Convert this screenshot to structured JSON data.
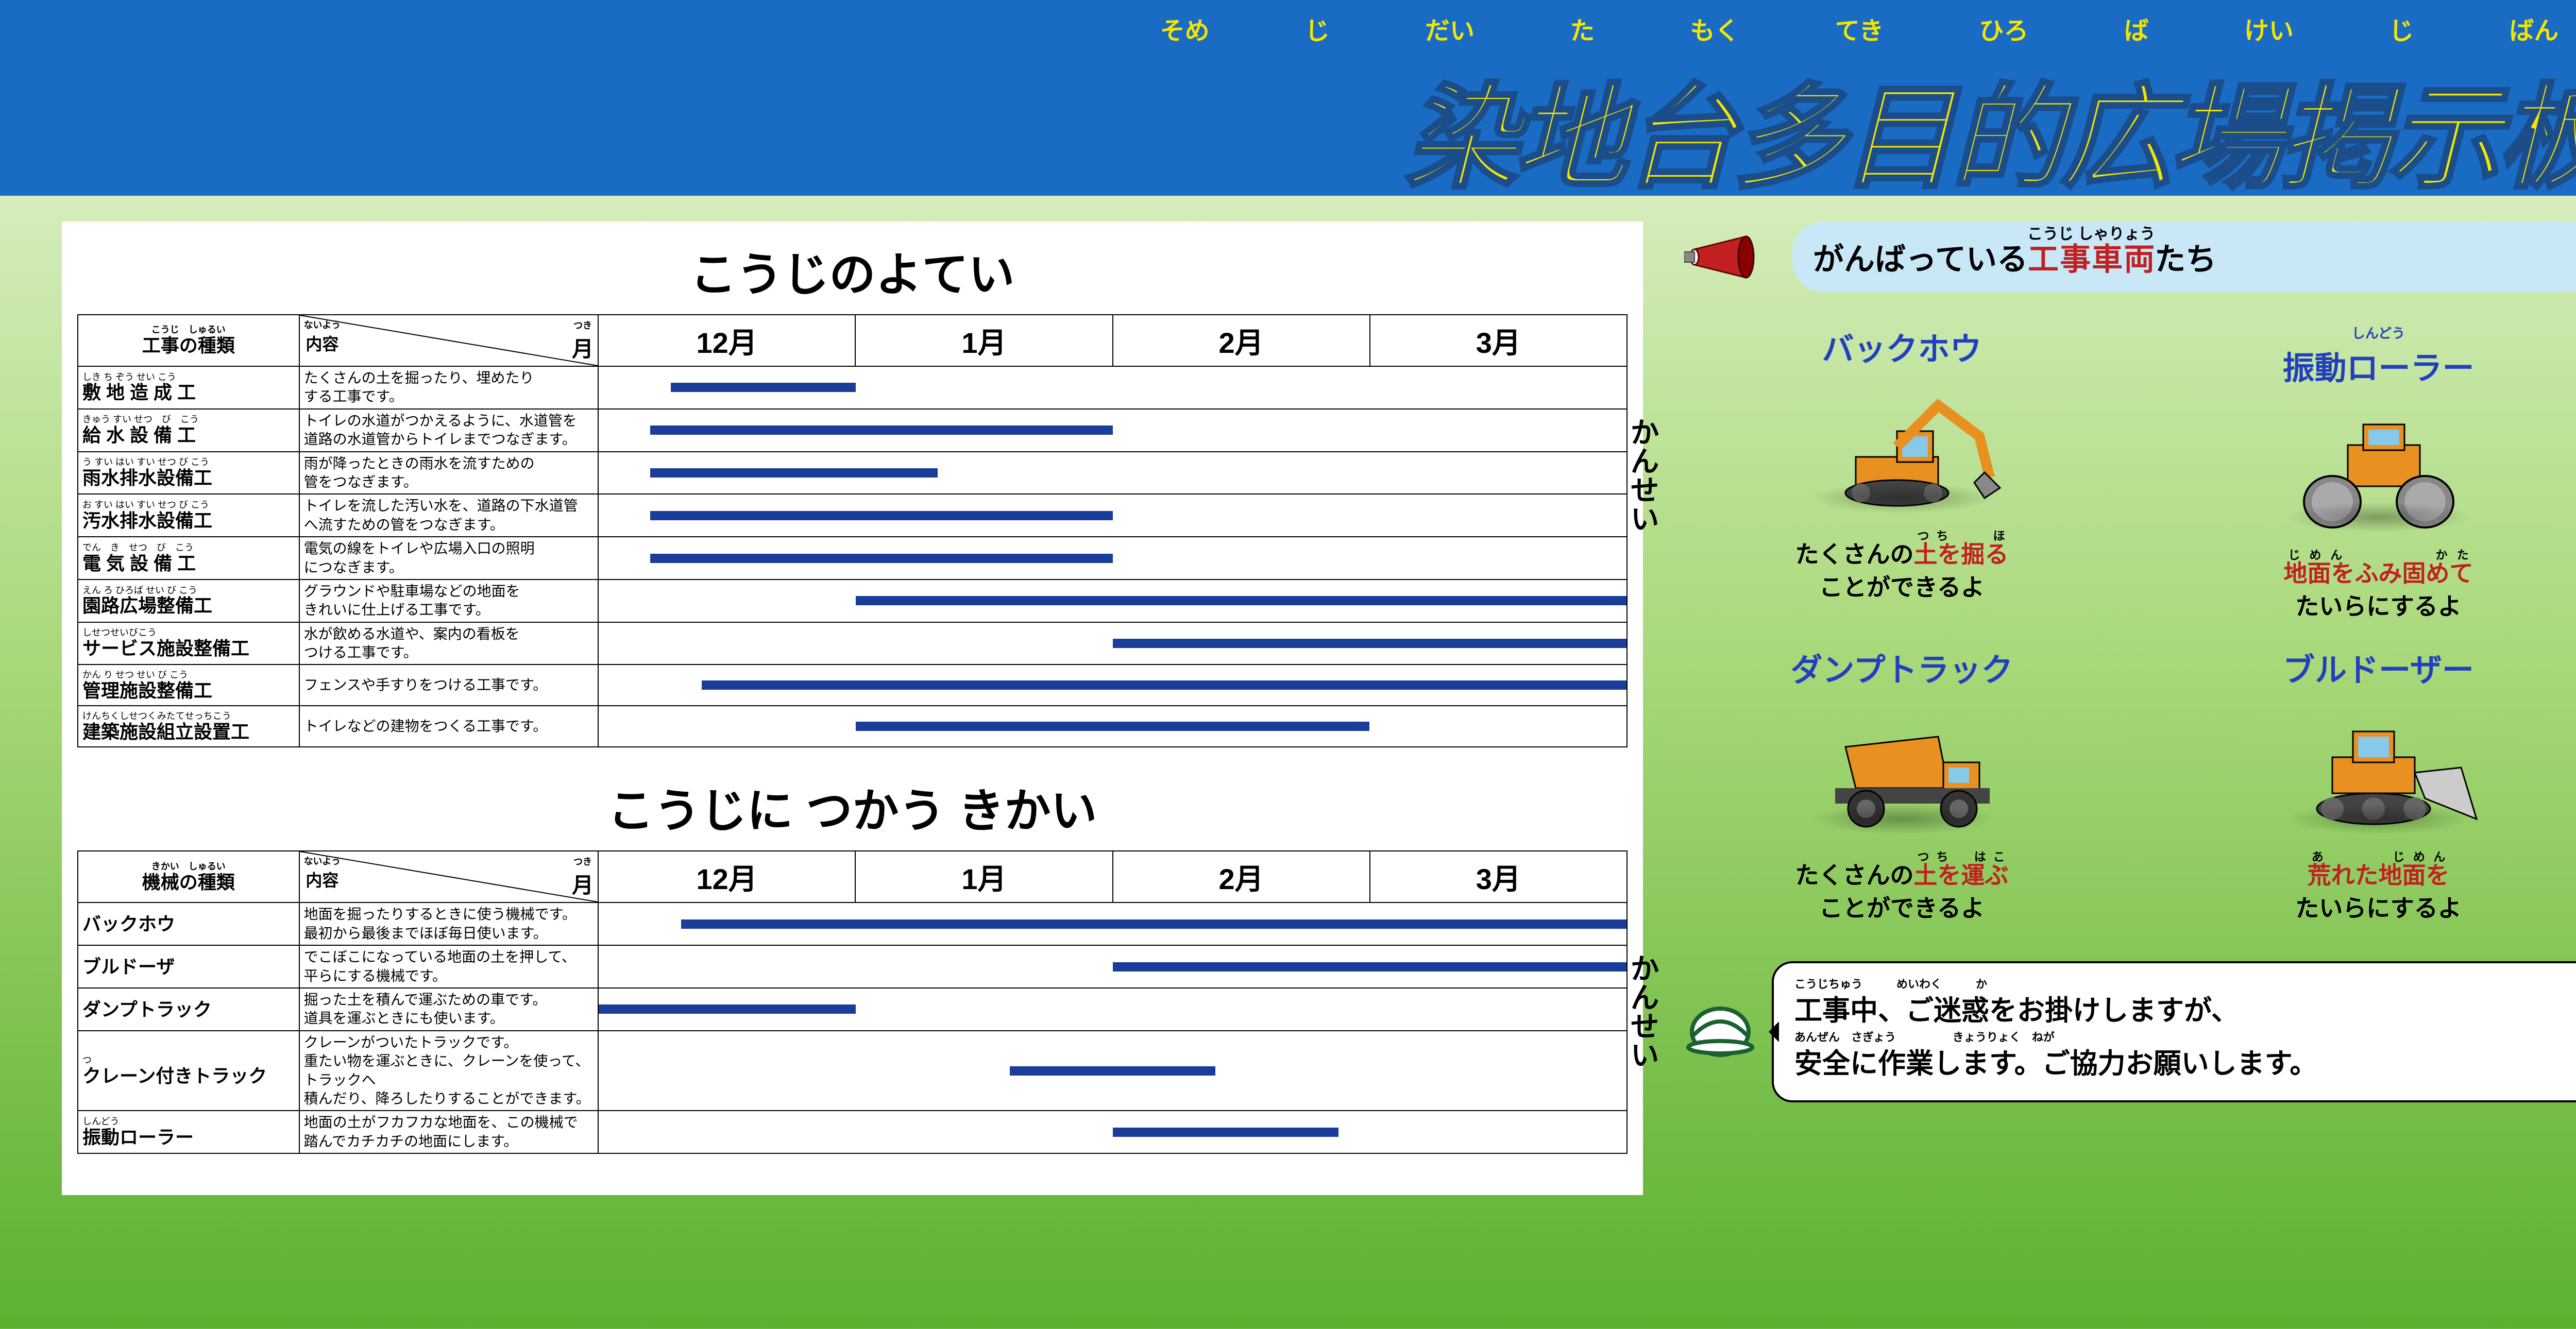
{
  "header": {
    "title": "染地台多目的広場掲示板",
    "furigana": [
      "そめ",
      "じ",
      "だい",
      "た",
      "もく",
      "てき",
      "ひろ",
      "ば",
      "けい",
      "じ",
      "ばん"
    ]
  },
  "schedule1": {
    "title": "こうじのよてい",
    "type_header_furi": "こうじ　しゅるい",
    "type_header": "工事の種類",
    "desc_header_top_furi": "ないよう",
    "desc_header_top": "内容",
    "desc_header_bot_furi": "つき",
    "desc_header_bot": "月",
    "months": [
      "12月",
      "1月",
      "2月",
      "3月"
    ],
    "kansei": "かんせい",
    "rows": [
      {
        "furi": "しき ち ぞう せい こう",
        "name": "敷 地 造 成 工",
        "desc": "たくさんの土を掘ったり、埋めたり\nする工事です。",
        "bar_start": 7,
        "bar_end": 25
      },
      {
        "furi": "きゅう すい せつ　び　こう",
        "name": "給 水 設 備 工",
        "desc": "トイレの水道がつかえるように、水道管を\n道路の水道管からトイレまでつなぎます。",
        "bar_start": 5,
        "bar_end": 50
      },
      {
        "furi": "う すい はい すい せつ び こう",
        "name": "雨水排水設備工",
        "desc": "雨が降ったときの雨水を流すための\n管をつなぎます。",
        "bar_start": 5,
        "bar_end": 33
      },
      {
        "furi": "お すい はい すい せつ び こう",
        "name": "汚水排水設備工",
        "desc": "トイレを流した汚い水を、道路の下水道管\nへ流すための管をつなぎます。",
        "bar_start": 5,
        "bar_end": 50
      },
      {
        "furi": "でん　き　せつ　び　こう",
        "name": "電 気 設 備 工",
        "desc": "電気の線をトイレや広場入口の照明\nにつなぎます。",
        "bar_start": 5,
        "bar_end": 50
      },
      {
        "furi": "えん ろ ひろば せい び こう",
        "name": "園路広場整備工",
        "desc": "グラウンドや駐車場などの地面を\nきれいに仕上げる工事です。",
        "bar_start": 25,
        "bar_end": 100
      },
      {
        "furi": "しせつせいびこう",
        "name": "サービス施設整備工",
        "desc": "水が飲める水道や、案内の看板を\nつける工事です。",
        "bar_start": 50,
        "bar_end": 100
      },
      {
        "furi": "かん り せつ せい び こう",
        "name": "管理施設整備工",
        "desc": "フェンスや手すりをつける工事です。",
        "bar_start": 10,
        "bar_end": 100
      },
      {
        "furi": "けんちくしせつくみたてせっちこう",
        "name": "建築施設組立設置工",
        "desc": "トイレなどの建物をつくる工事です。",
        "bar_start": 25,
        "bar_end": 75
      }
    ]
  },
  "schedule2": {
    "title": "こうじに つかう きかい",
    "type_header_furi": "きかい　しゅるい",
    "type_header": "機械の種類",
    "desc_header_top_furi": "ないよう",
    "desc_header_top": "内容",
    "desc_header_bot_furi": "つき",
    "desc_header_bot": "月",
    "months": [
      "12月",
      "1月",
      "2月",
      "3月"
    ],
    "kansei": "かんせい",
    "rows": [
      {
        "furi": "",
        "name": "バックホウ",
        "desc": "地面を掘ったりするときに使う機械です。\n最初から最後までほぼ毎日使います。",
        "bar_start": 8,
        "bar_end": 100
      },
      {
        "furi": "",
        "name": "ブルドーザ",
        "desc": "でこぼこになっている地面の土を押して、\n平らにする機械です。",
        "bar_start": 50,
        "bar_end": 100
      },
      {
        "furi": "",
        "name": "ダンプトラック",
        "desc": "掘った土を積んで運ぶための車です。\n道具を運ぶときにも使います。",
        "bar_start": 0,
        "bar_end": 25
      },
      {
        "furi": "つ",
        "name": "クレーン付きトラック",
        "desc": "クレーンがついたトラックです。\n重たい物を運ぶときに、クレーンを使って、トラックへ\n積んだり、降ろしたりすることができます。",
        "bar_start": 40,
        "bar_end": 60
      },
      {
        "furi": "しんどう",
        "name": "振動ローラー",
        "desc": "地面の土がフカフカな地面を、この機械で\n踏んでカチカチの地面にします。",
        "bar_start": 50,
        "bar_end": 72
      }
    ]
  },
  "vehicles": {
    "banner_pre": "がんばっている",
    "banner_accent": "工事車両",
    "banner_accent_furi": "こうじ しゃりょう",
    "banner_post": "たち",
    "items": [
      {
        "name": "バックホウ",
        "furi": "",
        "desc_pre": "たくさんの",
        "desc_accent": "土を掘る",
        "desc_accent_furi": "つち　　ほ",
        "desc_post": "\nことができるよ",
        "svg": "backhoe"
      },
      {
        "name": "振動ローラー",
        "furi": "しんどう",
        "desc_pre": "",
        "desc_accent": "地面をふみ固めて",
        "desc_accent_furi": "じめん　　　　かた",
        "desc_post": "\nたいらにするよ",
        "svg": "roller"
      },
      {
        "name": "ダンプトラック",
        "furi": "",
        "desc_pre": "たくさんの",
        "desc_accent": "土を運ぶ",
        "desc_accent_furi": "つち　はこ",
        "desc_post": "\nことができるよ",
        "svg": "dump"
      },
      {
        "name": "ブルドーザー",
        "furi": "",
        "desc_pre": "",
        "desc_accent": "荒れた地面を",
        "desc_accent_furi": "あ　　　じめん",
        "desc_post": "\nたいらにするよ",
        "svg": "bulldozer"
      }
    ]
  },
  "message": {
    "line1_furi": "こうじちゅう　　　めいわく　　　か",
    "line1": "工事中、ご迷惑をお掛けしますが、",
    "line2_furi": "あんぜん　さぎょう　　　　　きょうりょく　ねが",
    "line2": "安全に作業します。ご協力お願いします。"
  },
  "colors": {
    "header_blue": "#1a6bc4",
    "title_yellow": "#f5e600",
    "bar_blue": "#1a3d9a",
    "accent_red": "#c02020",
    "vehicle_blue": "#2040c0",
    "bubble_blue": "#c8e8f8"
  }
}
